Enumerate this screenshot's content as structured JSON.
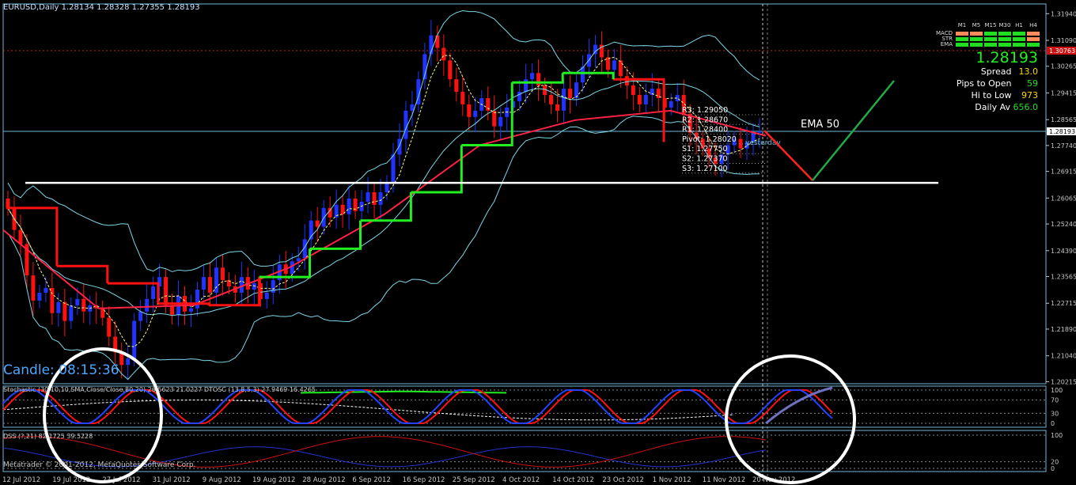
{
  "header": {
    "symbol_line": "EURUSD,Daily  1.28134 1.28328 1.27355 1.28193"
  },
  "panel": {
    "cols": [
      "M1",
      "M5",
      "M15",
      "M30",
      "H1",
      "H4"
    ],
    "rows": [
      {
        "label": "MACD",
        "colors": [
          "#ff8c5a",
          "#ff8c5a",
          "#22dd22",
          "#22dd22",
          "#22dd22",
          "#ff8c5a"
        ]
      },
      {
        "label": "STR",
        "colors": [
          "#22dd22",
          "#22dd22",
          "#22dd22",
          "#22dd22",
          "#22dd22",
          "#ff8c5a"
        ]
      },
      {
        "label": "EMA",
        "colors": [
          "#22dd22",
          "#22dd22",
          "#22dd22",
          "#22dd22",
          "#22dd22",
          "#22dd22"
        ]
      }
    ],
    "price": "1.28193",
    "stats": [
      {
        "label": "Spread",
        "value": "13.0",
        "color": "#ffd700"
      },
      {
        "label": "Pips to Open",
        "value": "59",
        "color": "#22dd22"
      },
      {
        "label": "Hi to Low",
        "value": "973",
        "color": "#ffd700"
      },
      {
        "label": "Daily Av",
        "value": "656.0",
        "color": "#22dd22"
      }
    ]
  },
  "pivots": [
    {
      "label": "R3: 1.29050",
      "price": 1.2905
    },
    {
      "label": "R2: 1.28670",
      "price": 1.2867
    },
    {
      "label": "R1: 1.28400",
      "price": 1.284
    },
    {
      "label": "Pivot: 1.28020",
      "price": 1.2802
    },
    {
      "label": "S1: 1.27750",
      "price": 1.2775
    },
    {
      "label": "S2: 1.27370",
      "price": 1.2737
    },
    {
      "label": "S3: 1.27100",
      "price": 1.271
    }
  ],
  "annotations": {
    "ema_label": "EMA 50",
    "candle_timer": "Candle:  08:15:36",
    "yesterday": "yesterday"
  },
  "indicators": {
    "stoch_label": "Stochastic (30,10,10,SMA,Close/Close,80,20) 26.5623 21.0227 DTOSC (13,8,5,3) 27.9469 16.4265",
    "dss_label": "DSS (?,21) 82.1725 39.5228",
    "stoch_ticks": [
      "100",
      "70",
      "30",
      "0"
    ],
    "dss_ticks": [
      "100",
      "20",
      "0"
    ]
  },
  "copyright": "Metatrader © 2001-2012, MetaQuotes Software Corp.",
  "chart_data": {
    "type": "candlestick",
    "price_axis_ticks": [
      "1.31940",
      "1.31090",
      "1.30265",
      "1.29415",
      "1.28565",
      "1.27740",
      "1.26915",
      "1.26065",
      "1.25240",
      "1.24390",
      "1.23565",
      "1.22715",
      "1.21890",
      "1.21040",
      "1.20215"
    ],
    "price_tag_current": "1.28193",
    "price_tag_level": "1.30763",
    "date_labels": [
      "12 Jul 2012",
      "19 Jul 2012",
      "27 Jul 2012",
      "31 Jul 2012",
      "9 Aug 2012",
      "19 Aug 2012",
      "28 Aug 2012",
      "6 Sep 2012",
      "16 Sep 2012",
      "25 Sep 2012",
      "4 Oct 2012",
      "14 Oct 2012",
      "23 Oct 2012",
      "1 Nov 2012",
      "11 Nov 2012",
      "20 Nov 2012"
    ],
    "ylim": [
      1.2015,
      1.3225
    ],
    "grid": false,
    "close_series": [
      1.2575,
      1.2505,
      1.246,
      1.236,
      1.228,
      1.2305,
      1.232,
      1.224,
      1.2275,
      1.2215,
      1.2265,
      1.2285,
      1.2245,
      1.2265,
      1.2255,
      1.2225,
      1.2165,
      1.2115,
      1.2075,
      1.2095,
      1.2215,
      1.2245,
      1.2285,
      1.2325,
      1.2355,
      1.2265,
      1.2235,
      1.2295,
      1.2245,
      1.2255,
      1.2315,
      1.2355,
      1.2305,
      1.2385,
      1.2345,
      1.2325,
      1.2305,
      1.2355,
      1.2315,
      1.2335,
      1.2285,
      1.2305,
      1.2345,
      1.2395,
      1.2365,
      1.2405,
      1.2415,
      1.2475,
      1.2535,
      1.2515,
      1.2575,
      1.2545,
      1.2585,
      1.2555,
      1.2605,
      1.2565,
      1.2595,
      1.2625,
      1.2585,
      1.2625,
      1.2655,
      1.2745,
      1.2795,
      1.2885,
      1.2905,
      1.2985,
      1.3065,
      1.3125,
      1.3085,
      1.3045,
      1.2985,
      1.2945,
      1.2905,
      1.2865,
      1.2885,
      1.2925,
      1.2885,
      1.2835,
      1.2865,
      1.2895,
      1.2915,
      1.2945,
      1.2985,
      1.3005,
      1.2965,
      1.2935,
      1.2905,
      1.2885,
      1.2955,
      1.2925,
      1.2975,
      1.3025,
      1.3065,
      1.3095,
      1.3055,
      1.3015,
      1.3045,
      1.2995,
      1.2965,
      1.2935,
      1.2905,
      1.2935,
      1.2955,
      1.2925,
      1.2895,
      1.2915,
      1.2935,
      1.2875,
      1.2815,
      1.2795,
      1.2765,
      1.2735,
      1.2715,
      1.2745,
      1.2775,
      1.2795,
      1.2765,
      1.2785,
      1.2815,
      1.2819
    ],
    "series": [
      {
        "name": "EMA 50",
        "values": [
          1.2505,
          1.2255,
          1.2265,
          1.2385,
          1.2555,
          1.2775,
          1.2855,
          1.2885,
          1.2805
        ]
      },
      {
        "name": "Pivot",
        "values": [
          1.2802
        ]
      }
    ],
    "support_level": 1.2655,
    "trailing_stop": [
      1.2575,
      1.239,
      1.2335,
      1.227,
      1.2265,
      1.2355,
      1.2445,
      1.2535,
      1.2625,
      1.2775,
      1.2975,
      1.3005,
      1.2985,
      1.2785
    ]
  }
}
